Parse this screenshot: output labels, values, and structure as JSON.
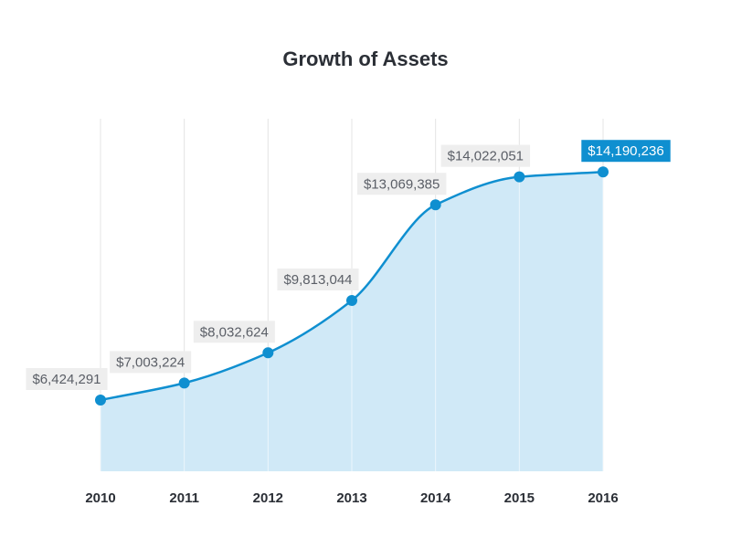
{
  "chart_data": {
    "type": "area",
    "title": "Growth of Assets",
    "xlabel": "",
    "ylabel": "",
    "categories": [
      "2010",
      "2011",
      "2012",
      "2013",
      "2014",
      "2015",
      "2016"
    ],
    "values": [
      6424291,
      7003224,
      8032624,
      9813044,
      13069385,
      14022051,
      14190236
    ],
    "value_labels": [
      "$6,424,291",
      "$7,003,224",
      "$8,032,624",
      "$9,813,044",
      "$13,069,385",
      "$14,022,051",
      "$14,190,236"
    ],
    "highlighted_index": 6,
    "ylim": [
      4000000,
      16000000
    ],
    "grid": "vertical",
    "colors": {
      "line": "#0f8fd0",
      "fill": "#d0e9f7",
      "point": "#0f8fd0",
      "label_bg": "#eeeeee",
      "highlight_bg": "#0f8fd0",
      "grid": "#e4e4e4"
    }
  }
}
